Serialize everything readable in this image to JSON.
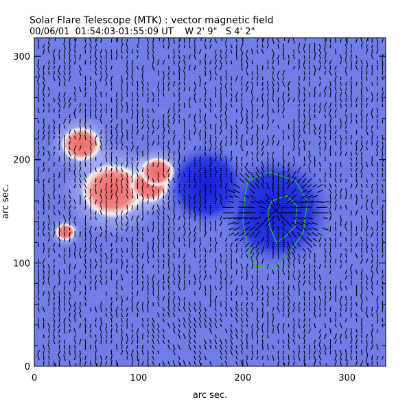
{
  "chart_data": {
    "type": "heatmap",
    "title": "Solar Flare Telescope (MTK) : vector magnetic field",
    "subtitle": "00/06/01  01:54:03-01:55:09 UT    W 2' 9\"   S 4' 2\"",
    "xlabel": "arc sec.",
    "ylabel": "arc sec.",
    "xlim": [
      0,
      337
    ],
    "ylim": [
      0,
      318
    ],
    "xticks": [
      "0",
      "100",
      "200",
      "300"
    ],
    "yticks": [
      "0",
      "100",
      "200",
      "300"
    ],
    "xtick_values": [
      0,
      100,
      200,
      300
    ],
    "ytick_values": [
      0,
      100,
      200,
      300
    ],
    "colors": {
      "background": "#6b78e6",
      "positive": "#f07070",
      "negative": "#1020e0",
      "neutral": "#f4f4ff",
      "contour": "#22cc22",
      "vectors": "#000000"
    },
    "positive_regions": [
      {
        "x": 45,
        "y": 215,
        "r": 14
      },
      {
        "x": 75,
        "y": 170,
        "r": 22
      },
      {
        "x": 110,
        "y": 175,
        "r": 14
      },
      {
        "x": 118,
        "y": 188,
        "r": 12
      },
      {
        "x": 30,
        "y": 130,
        "r": 7
      }
    ],
    "negative_regions": [
      {
        "x": 232,
        "y": 150,
        "r": 38
      },
      {
        "x": 165,
        "y": 175,
        "r": 28
      }
    ],
    "contours": [
      {
        "level": "outer",
        "points": [
          [
            205,
            180
          ],
          [
            225,
            188
          ],
          [
            250,
            180
          ],
          [
            262,
            160
          ],
          [
            258,
            130
          ],
          [
            245,
            110
          ],
          [
            232,
            95
          ],
          [
            212,
            97
          ],
          [
            205,
            115
          ],
          [
            200,
            140
          ],
          [
            202,
            165
          ]
        ]
      },
      {
        "level": "inner",
        "points": [
          [
            228,
            160
          ],
          [
            242,
            165
          ],
          [
            252,
            155
          ],
          [
            250,
            135
          ],
          [
            240,
            125
          ],
          [
            232,
            120
          ],
          [
            226,
            135
          ],
          [
            224,
            150
          ]
        ]
      }
    ]
  }
}
